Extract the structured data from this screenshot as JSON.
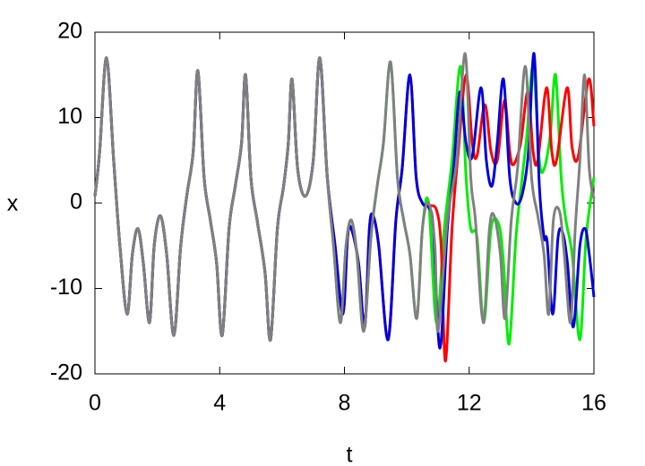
{
  "chart_data": {
    "type": "line",
    "xlabel": "t",
    "ylabel": "x",
    "xlim": [
      0,
      16
    ],
    "xticks": [
      0,
      4,
      8,
      12,
      16
    ],
    "ylim": [
      -20,
      20
    ],
    "yticks": [
      -20,
      -10,
      0,
      10,
      20
    ],
    "series": [
      {
        "color": "#00ee00",
        "x": [
          0,
          0.15,
          0.37,
          0.6,
          0.8,
          1.03,
          1.2,
          1.38,
          1.55,
          1.75,
          1.9,
          2.1,
          2.3,
          2.53,
          2.75,
          2.95,
          3.15,
          3.3,
          3.5,
          3.7,
          3.9,
          4.08,
          4.3,
          4.5,
          4.7,
          4.83,
          5.0,
          5.2,
          5.45,
          5.63,
          5.85,
          6.05,
          6.2,
          6.32,
          6.5,
          6.75,
          7.0,
          7.21,
          7.45,
          7.65,
          7.87,
          8.05,
          8.22,
          8.4,
          8.62,
          8.85,
          9.05,
          9.25,
          9.48,
          9.7,
          9.9,
          10.1,
          10.32,
          10.5,
          10.7,
          10.95,
          11.2,
          11.45,
          11.72,
          11.9,
          12.05,
          12.25,
          12.47,
          12.7,
          12.95,
          13.1,
          13.28,
          13.5,
          13.7,
          13.85,
          14.05,
          14.25,
          14.4,
          14.6,
          14.77,
          14.95,
          15.1,
          15.3,
          15.55,
          15.75,
          16
        ],
        "values": [
          0.8,
          6,
          17,
          5,
          -5,
          -13,
          -6,
          -3,
          -7,
          -14,
          -5,
          -1.5,
          -6,
          -15.5,
          -5,
          1,
          6,
          15.5,
          3,
          -2,
          -7,
          -15.5,
          -3,
          2,
          7,
          15,
          3,
          -2,
          -8,
          -16,
          -3,
          2,
          7,
          14.5,
          4,
          0.8,
          5,
          17,
          3,
          -5,
          -14,
          -5,
          -2,
          -6,
          -15,
          -4,
          2,
          7,
          16.5,
          3,
          -2,
          -6,
          -13.5,
          -3,
          0,
          -14,
          -3,
          5,
          16,
          3,
          -3,
          -4,
          -14,
          -3,
          -2.5,
          -7,
          -16.5,
          -4,
          3,
          8,
          16,
          5,
          4,
          8,
          15,
          3,
          -2,
          -6,
          -16,
          -4,
          3
        ]
      },
      {
        "color": "#ff0000",
        "x": [
          0,
          0.15,
          0.37,
          0.6,
          0.8,
          1.03,
          1.2,
          1.38,
          1.55,
          1.75,
          1.9,
          2.1,
          2.3,
          2.53,
          2.75,
          2.95,
          3.15,
          3.3,
          3.5,
          3.7,
          3.9,
          4.08,
          4.3,
          4.5,
          4.7,
          4.83,
          5.0,
          5.2,
          5.45,
          5.63,
          5.85,
          6.05,
          6.2,
          6.32,
          6.5,
          6.75,
          7.0,
          7.21,
          7.45,
          7.7,
          7.95,
          8.1,
          8.22,
          8.45,
          8.65,
          8.8,
          8.92,
          9.1,
          9.4,
          9.65,
          9.85,
          10.1,
          10.3,
          10.5,
          10.7,
          10.95,
          11.1,
          11.24,
          11.45,
          11.65,
          11.9,
          12.1,
          12.25,
          12.5,
          12.7,
          12.9,
          13.13,
          13.3,
          13.42,
          13.65,
          13.88,
          14.05,
          14.2,
          14.48,
          14.65,
          14.8,
          15.14,
          15.3,
          15.5,
          15.83,
          16
        ],
        "values": [
          0.8,
          6,
          17,
          5,
          -5,
          -13,
          -6,
          -3,
          -7,
          -14,
          -5,
          -1.5,
          -6,
          -15.5,
          -5,
          1,
          6,
          15.5,
          3,
          -2,
          -7,
          -15.5,
          -3,
          2,
          7,
          15,
          3,
          -2,
          -8,
          -16,
          -3,
          2,
          7,
          14.5,
          4,
          0.8,
          5,
          17,
          3,
          -5,
          -13,
          -4,
          -3,
          -7,
          -14.5,
          -3,
          -1.5,
          -5,
          -16,
          -2,
          4,
          15,
          3,
          0,
          -0.3,
          -0.8,
          -5,
          -18.5,
          -3,
          6,
          15,
          7,
          5.5,
          11.5,
          6,
          5,
          12,
          6,
          4.5,
          7,
          13,
          6,
          5,
          13.5,
          6,
          5,
          13.5,
          6.5,
          5.5,
          14.5,
          9
        ]
      },
      {
        "color": "#0000dd",
        "x": [
          0,
          0.15,
          0.37,
          0.6,
          0.8,
          1.03,
          1.2,
          1.38,
          1.55,
          1.75,
          1.9,
          2.1,
          2.3,
          2.53,
          2.75,
          2.95,
          3.15,
          3.3,
          3.5,
          3.7,
          3.9,
          4.08,
          4.3,
          4.5,
          4.7,
          4.83,
          5.0,
          5.2,
          5.45,
          5.63,
          5.85,
          6.05,
          6.2,
          6.32,
          6.5,
          6.75,
          7.0,
          7.21,
          7.45,
          7.7,
          7.95,
          8.1,
          8.22,
          8.45,
          8.65,
          8.8,
          8.92,
          9.1,
          9.4,
          9.65,
          9.85,
          10.1,
          10.3,
          10.5,
          10.7,
          10.85,
          11.06,
          11.3,
          11.5,
          11.7,
          11.9,
          12.1,
          12.38,
          12.55,
          12.73,
          12.9,
          13.1,
          13.3,
          13.5,
          13.7,
          13.9,
          14.08,
          14.25,
          14.4,
          14.5,
          14.68,
          14.85,
          15.0,
          15.15,
          15.34,
          15.55,
          15.72,
          15.85,
          16
        ],
        "values": [
          0.8,
          6,
          17,
          5,
          -5,
          -13,
          -6,
          -3,
          -7,
          -14,
          -5,
          -1.5,
          -6,
          -15.5,
          -5,
          1,
          6,
          15.5,
          3,
          -2,
          -7,
          -15.5,
          -3,
          2,
          7,
          15,
          3,
          -2,
          -8,
          -16,
          -3,
          2,
          7,
          14.5,
          4,
          0.8,
          5,
          17,
          3,
          -5,
          -13,
          -4,
          -3,
          -7,
          -14.5,
          -3,
          -1.5,
          -5,
          -16,
          -2,
          4,
          15,
          3,
          0,
          -0.5,
          -3,
          -17,
          -3,
          4,
          13,
          7,
          5.5,
          13.5,
          5,
          2,
          7,
          14.5,
          3,
          0,
          1,
          6,
          17.5,
          2,
          -4,
          -4.5,
          -13,
          -4,
          -3.5,
          -7,
          -14.5,
          -5,
          -3,
          -6,
          -11
        ]
      },
      {
        "color": "#808080",
        "x": [
          0,
          0.15,
          0.37,
          0.6,
          0.8,
          1.03,
          1.2,
          1.38,
          1.55,
          1.75,
          1.9,
          2.1,
          2.3,
          2.53,
          2.75,
          2.95,
          3.15,
          3.3,
          3.5,
          3.7,
          3.9,
          4.08,
          4.3,
          4.5,
          4.7,
          4.83,
          5.0,
          5.2,
          5.45,
          5.63,
          5.85,
          6.05,
          6.2,
          6.32,
          6.5,
          6.75,
          7.0,
          7.21,
          7.45,
          7.65,
          7.87,
          8.05,
          8.22,
          8.4,
          8.62,
          8.85,
          9.05,
          9.25,
          9.48,
          9.7,
          9.9,
          10.1,
          10.32,
          10.5,
          10.7,
          10.9,
          11.0,
          11.3,
          11.6,
          11.87,
          12.05,
          12.2,
          12.45,
          12.65,
          12.8,
          13.0,
          13.15,
          13.35,
          13.55,
          13.8,
          14.0,
          14.2,
          14.4,
          14.55,
          14.7,
          14.9,
          15.05,
          15.25,
          15.4,
          15.55,
          15.7,
          15.85,
          16
        ],
        "values": [
          0.8,
          6,
          17,
          5,
          -5,
          -13,
          -6,
          -3,
          -7,
          -14,
          -5,
          -1.5,
          -6,
          -15.5,
          -5,
          1,
          6,
          15.5,
          3,
          -2,
          -7,
          -15.5,
          -3,
          2,
          7,
          15,
          3,
          -2,
          -8,
          -16,
          -3,
          2,
          7,
          14.5,
          4,
          0.8,
          5,
          17,
          3,
          -5,
          -14,
          -5,
          -2,
          -6,
          -15,
          -4,
          2,
          7,
          16.5,
          3,
          -2,
          -6,
          -13.5,
          -3,
          0,
          -5,
          -15,
          -2,
          5,
          17.5,
          3,
          -2,
          -14,
          -3,
          -1.5,
          -6,
          -13.5,
          -2,
          4,
          16,
          3,
          -1.5,
          -6,
          -13,
          -2,
          -1,
          -6,
          -14,
          -3,
          5,
          15,
          4,
          0.5
        ]
      }
    ]
  }
}
